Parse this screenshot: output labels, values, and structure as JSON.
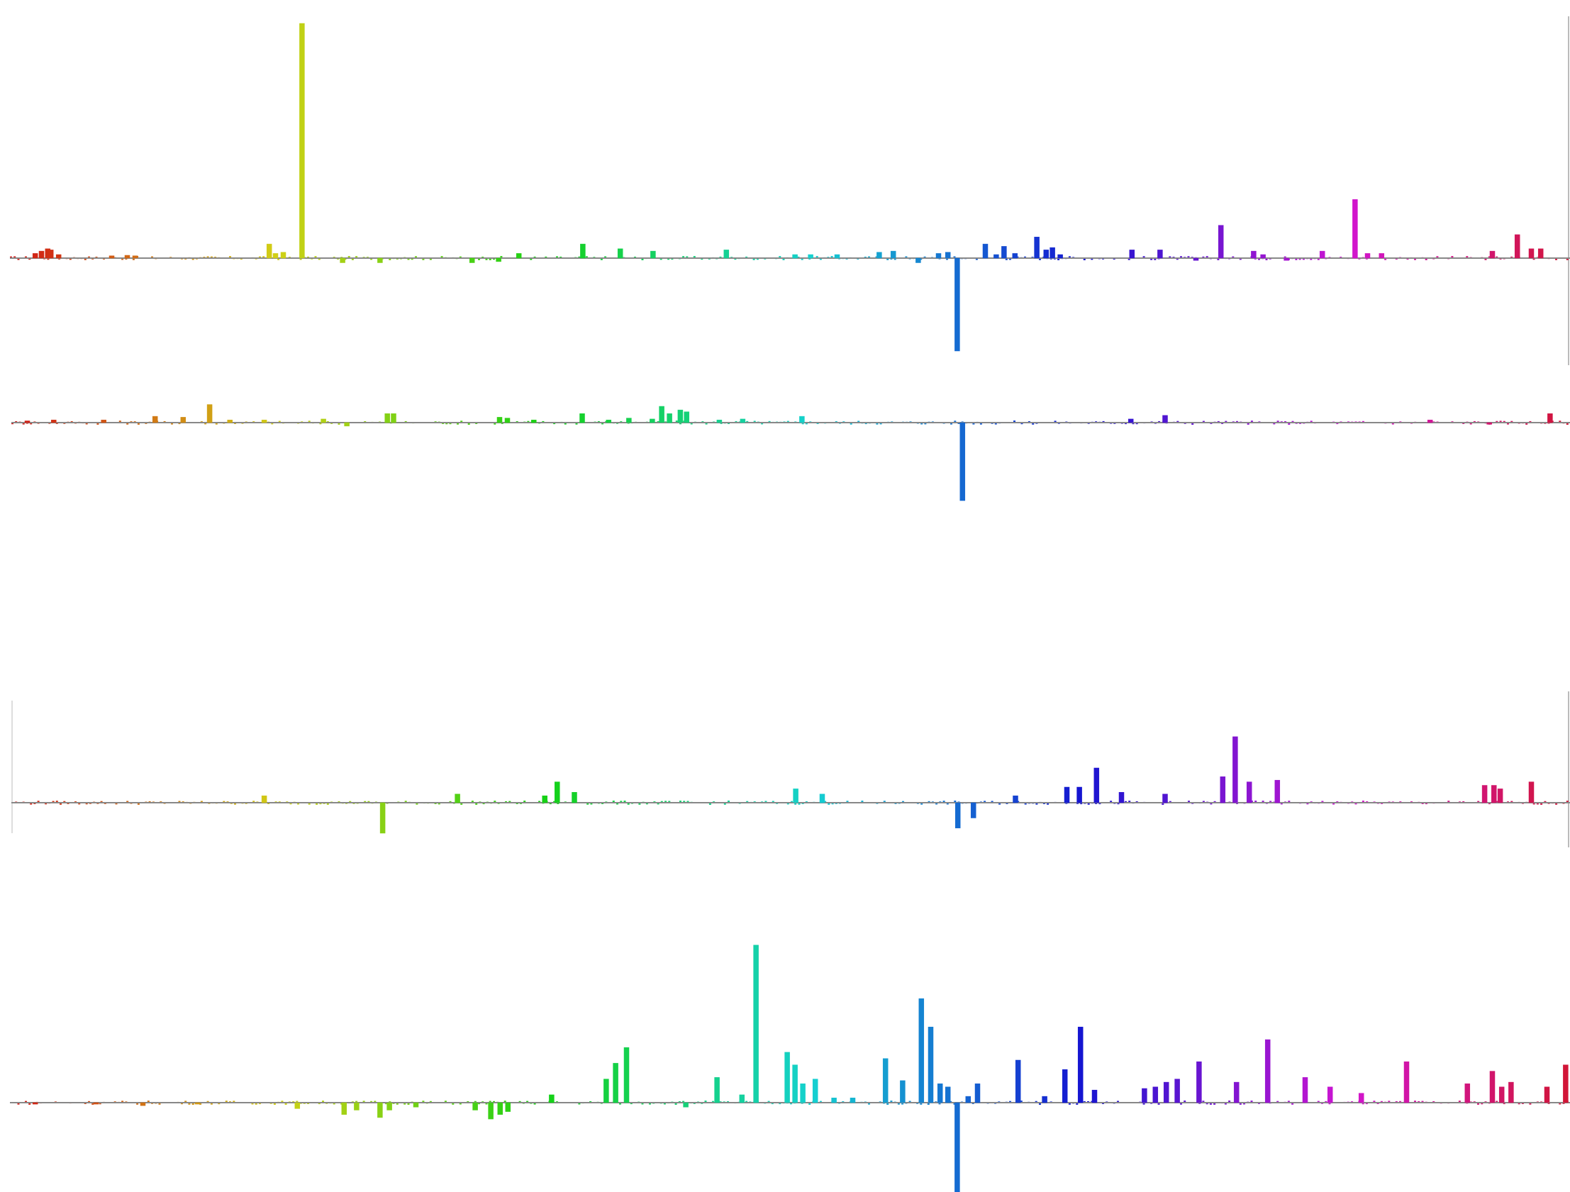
{
  "chart_data": [
    {
      "type": "bar",
      "title": "",
      "xlabel": "",
      "ylabel": "",
      "baseline_color": "#888888",
      "ylim": [
        -0.4,
        1.0
      ],
      "spikes": [
        {
          "x": 0.016,
          "y": 0.02
        },
        {
          "x": 0.02,
          "y": 0.03
        },
        {
          "x": 0.024,
          "y": 0.04
        },
        {
          "x": 0.026,
          "y": 0.035
        },
        {
          "x": 0.031,
          "y": 0.015
        },
        {
          "x": 0.065,
          "y": 0.01
        },
        {
          "x": 0.075,
          "y": 0.012
        },
        {
          "x": 0.08,
          "y": 0.01
        },
        {
          "x": 0.166,
          "y": 0.06
        },
        {
          "x": 0.17,
          "y": 0.02
        },
        {
          "x": 0.175,
          "y": 0.025
        },
        {
          "x": 0.187,
          "y": 1.0
        },
        {
          "x": 0.213,
          "y": -0.02
        },
        {
          "x": 0.237,
          "y": -0.02
        },
        {
          "x": 0.296,
          "y": -0.02
        },
        {
          "x": 0.313,
          "y": -0.015
        },
        {
          "x": 0.326,
          "y": 0.02
        },
        {
          "x": 0.367,
          "y": 0.06
        },
        {
          "x": 0.391,
          "y": 0.04
        },
        {
          "x": 0.412,
          "y": 0.03
        },
        {
          "x": 0.459,
          "y": 0.035
        },
        {
          "x": 0.503,
          "y": 0.015
        },
        {
          "x": 0.513,
          "y": 0.015
        },
        {
          "x": 0.53,
          "y": 0.015
        },
        {
          "x": 0.557,
          "y": 0.025
        },
        {
          "x": 0.566,
          "y": 0.03
        },
        {
          "x": 0.582,
          "y": -0.02
        },
        {
          "x": 0.595,
          "y": 0.02
        },
        {
          "x": 0.601,
          "y": 0.025
        },
        {
          "x": 0.607,
          "y": -0.4
        },
        {
          "x": 0.625,
          "y": 0.06
        },
        {
          "x": 0.632,
          "y": 0.015
        },
        {
          "x": 0.637,
          "y": 0.05
        },
        {
          "x": 0.644,
          "y": 0.02
        },
        {
          "x": 0.658,
          "y": 0.09
        },
        {
          "x": 0.664,
          "y": 0.035
        },
        {
          "x": 0.668,
          "y": 0.045
        },
        {
          "x": 0.673,
          "y": 0.015
        },
        {
          "x": 0.719,
          "y": 0.035
        },
        {
          "x": 0.737,
          "y": 0.035
        },
        {
          "x": 0.76,
          "y": -0.01
        },
        {
          "x": 0.776,
          "y": 0.14
        },
        {
          "x": 0.797,
          "y": 0.03
        },
        {
          "x": 0.803,
          "y": 0.015
        },
        {
          "x": 0.818,
          "y": -0.01
        },
        {
          "x": 0.841,
          "y": 0.03
        },
        {
          "x": 0.862,
          "y": 0.25
        },
        {
          "x": 0.87,
          "y": 0.02
        },
        {
          "x": 0.879,
          "y": 0.02
        },
        {
          "x": 0.95,
          "y": 0.03
        },
        {
          "x": 0.966,
          "y": 0.1
        },
        {
          "x": 0.975,
          "y": 0.04
        },
        {
          "x": 0.981,
          "y": 0.04
        }
      ]
    },
    {
      "type": "bar",
      "title": "",
      "xlabel": "",
      "ylabel": "",
      "baseline_color": "#888888",
      "ylim": [
        -0.45,
        0.2
      ],
      "spikes": [
        {
          "x": 0.01,
          "y": 0.01
        },
        {
          "x": 0.027,
          "y": 0.015
        },
        {
          "x": 0.059,
          "y": 0.015
        },
        {
          "x": 0.092,
          "y": 0.035
        },
        {
          "x": 0.11,
          "y": 0.03
        },
        {
          "x": 0.127,
          "y": 0.1
        },
        {
          "x": 0.14,
          "y": 0.015
        },
        {
          "x": 0.162,
          "y": 0.015
        },
        {
          "x": 0.2,
          "y": 0.02
        },
        {
          "x": 0.215,
          "y": -0.02
        },
        {
          "x": 0.241,
          "y": 0.05
        },
        {
          "x": 0.245,
          "y": 0.05
        },
        {
          "x": 0.313,
          "y": 0.03
        },
        {
          "x": 0.318,
          "y": 0.025
        },
        {
          "x": 0.335,
          "y": 0.015
        },
        {
          "x": 0.366,
          "y": 0.05
        },
        {
          "x": 0.383,
          "y": 0.015
        },
        {
          "x": 0.396,
          "y": 0.025
        },
        {
          "x": 0.411,
          "y": 0.02
        },
        {
          "x": 0.417,
          "y": 0.09
        },
        {
          "x": 0.422,
          "y": 0.05
        },
        {
          "x": 0.429,
          "y": 0.07
        },
        {
          "x": 0.433,
          "y": 0.06
        },
        {
          "x": 0.454,
          "y": 0.015
        },
        {
          "x": 0.469,
          "y": 0.02
        },
        {
          "x": 0.507,
          "y": 0.035
        },
        {
          "x": 0.61,
          "y": -0.45
        },
        {
          "x": 0.718,
          "y": 0.02
        },
        {
          "x": 0.74,
          "y": 0.04
        },
        {
          "x": 0.91,
          "y": 0.015
        },
        {
          "x": 0.948,
          "y": -0.01
        },
        {
          "x": 0.987,
          "y": 0.05
        }
      ]
    },
    {
      "type": "bar",
      "title": "",
      "xlabel": "",
      "ylabel": "",
      "baseline_color": "#888888",
      "ylim": [
        -0.06,
        0.6
      ],
      "spikes": [
        {
          "x": 0.162,
          "y": 0.04
        },
        {
          "x": 0.238,
          "y": -0.06
        },
        {
          "x": 0.286,
          "y": 0.05
        },
        {
          "x": 0.342,
          "y": 0.04
        },
        {
          "x": 0.35,
          "y": 0.12
        },
        {
          "x": 0.361,
          "y": 0.06
        },
        {
          "x": 0.503,
          "y": 0.08
        },
        {
          "x": 0.52,
          "y": 0.05
        },
        {
          "x": 0.607,
          "y": -0.05
        },
        {
          "x": 0.617,
          "y": -0.03
        },
        {
          "x": 0.644,
          "y": 0.04
        },
        {
          "x": 0.677,
          "y": 0.09
        },
        {
          "x": 0.685,
          "y": 0.09
        },
        {
          "x": 0.696,
          "y": 0.2
        },
        {
          "x": 0.712,
          "y": 0.06
        },
        {
          "x": 0.74,
          "y": 0.05
        },
        {
          "x": 0.777,
          "y": 0.15
        },
        {
          "x": 0.785,
          "y": 0.38
        },
        {
          "x": 0.794,
          "y": 0.12
        },
        {
          "x": 0.812,
          "y": 0.13
        },
        {
          "x": 0.945,
          "y": 0.1
        },
        {
          "x": 0.951,
          "y": 0.1
        },
        {
          "x": 0.955,
          "y": 0.08
        },
        {
          "x": 0.975,
          "y": 0.12
        }
      ]
    },
    {
      "type": "bar",
      "title": "",
      "xlabel": "",
      "ylabel": "",
      "baseline_color": "#888888",
      "ylim": [
        -0.6,
        0.9
      ],
      "spikes": [
        {
          "x": 0.016,
          "y": -0.01
        },
        {
          "x": 0.055,
          "y": -0.01
        },
        {
          "x": 0.085,
          "y": -0.02
        },
        {
          "x": 0.12,
          "y": -0.01
        },
        {
          "x": 0.184,
          "y": -0.04
        },
        {
          "x": 0.214,
          "y": -0.08
        },
        {
          "x": 0.222,
          "y": -0.05
        },
        {
          "x": 0.237,
          "y": -0.1
        },
        {
          "x": 0.243,
          "y": -0.05
        },
        {
          "x": 0.26,
          "y": -0.03
        },
        {
          "x": 0.298,
          "y": -0.05
        },
        {
          "x": 0.308,
          "y": -0.11
        },
        {
          "x": 0.314,
          "y": -0.08
        },
        {
          "x": 0.319,
          "y": -0.06
        },
        {
          "x": 0.347,
          "y": 0.05
        },
        {
          "x": 0.382,
          "y": 0.15
        },
        {
          "x": 0.388,
          "y": 0.25
        },
        {
          "x": 0.395,
          "y": 0.35
        },
        {
          "x": 0.433,
          "y": -0.03
        },
        {
          "x": 0.453,
          "y": 0.16
        },
        {
          "x": 0.469,
          "y": 0.05
        },
        {
          "x": 0.478,
          "y": 1.0
        },
        {
          "x": 0.498,
          "y": 0.32
        },
        {
          "x": 0.503,
          "y": 0.24
        },
        {
          "x": 0.508,
          "y": 0.12
        },
        {
          "x": 0.516,
          "y": 0.15
        },
        {
          "x": 0.528,
          "y": 0.03
        },
        {
          "x": 0.54,
          "y": 0.03
        },
        {
          "x": 0.561,
          "y": 0.28
        },
        {
          "x": 0.572,
          "y": 0.14
        },
        {
          "x": 0.584,
          "y": 0.66
        },
        {
          "x": 0.59,
          "y": 0.48
        },
        {
          "x": 0.596,
          "y": 0.12
        },
        {
          "x": 0.601,
          "y": 0.1
        },
        {
          "x": 0.607,
          "y": -0.6
        },
        {
          "x": 0.614,
          "y": 0.04
        },
        {
          "x": 0.62,
          "y": 0.12
        },
        {
          "x": 0.646,
          "y": 0.27
        },
        {
          "x": 0.663,
          "y": 0.04
        },
        {
          "x": 0.676,
          "y": 0.21
        },
        {
          "x": 0.686,
          "y": 0.48
        },
        {
          "x": 0.695,
          "y": 0.08
        },
        {
          "x": 0.727,
          "y": 0.09
        },
        {
          "x": 0.734,
          "y": 0.1
        },
        {
          "x": 0.741,
          "y": 0.13
        },
        {
          "x": 0.748,
          "y": 0.15
        },
        {
          "x": 0.762,
          "y": 0.26
        },
        {
          "x": 0.786,
          "y": 0.13
        },
        {
          "x": 0.806,
          "y": 0.4
        },
        {
          "x": 0.83,
          "y": 0.16
        },
        {
          "x": 0.846,
          "y": 0.1
        },
        {
          "x": 0.866,
          "y": 0.06
        },
        {
          "x": 0.895,
          "y": 0.26
        },
        {
          "x": 0.934,
          "y": 0.12
        },
        {
          "x": 0.95,
          "y": 0.2
        },
        {
          "x": 0.956,
          "y": 0.1
        },
        {
          "x": 0.962,
          "y": 0.13
        },
        {
          "x": 0.985,
          "y": 0.1
        },
        {
          "x": 0.997,
          "y": 0.24
        }
      ]
    }
  ]
}
